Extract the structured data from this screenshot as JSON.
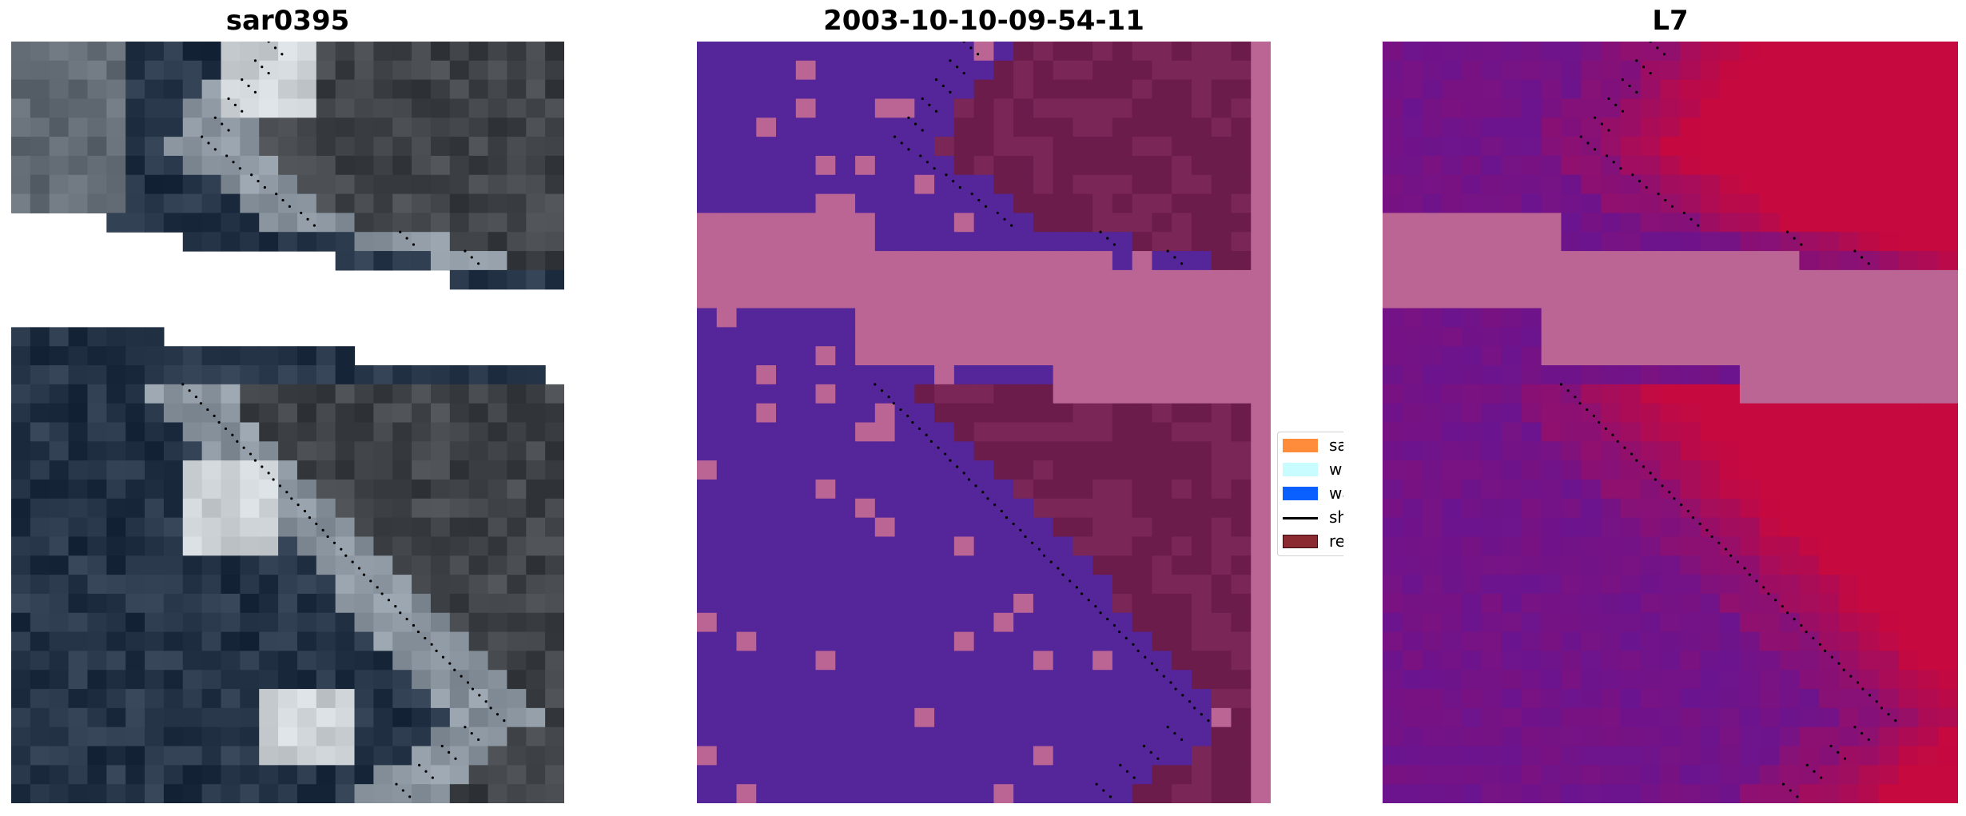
{
  "titles": {
    "left": "sar0395",
    "middle": "2003-10-10-09-54-11",
    "right": "L7"
  },
  "legend": {
    "items": [
      {
        "label": "sand",
        "color": "#ff8c3a",
        "kind": "patch"
      },
      {
        "label": "whitewater",
        "color": "#c8fcff",
        "kind": "patch"
      },
      {
        "label": "water",
        "color": "#0a5fff",
        "kind": "patch"
      },
      {
        "label": "shoreline",
        "color": "#000000",
        "kind": "line"
      },
      {
        "label": "reference",
        "color": "#8b2a30",
        "kind": "patch"
      }
    ]
  },
  "colors": {
    "classified_water": "#55259a",
    "classified_sand": "#6b1c4b",
    "classified_mask": "#bb6595",
    "index_low": "#5a169d",
    "index_high": "#c6093f",
    "nodata": "#ffffff"
  }
}
